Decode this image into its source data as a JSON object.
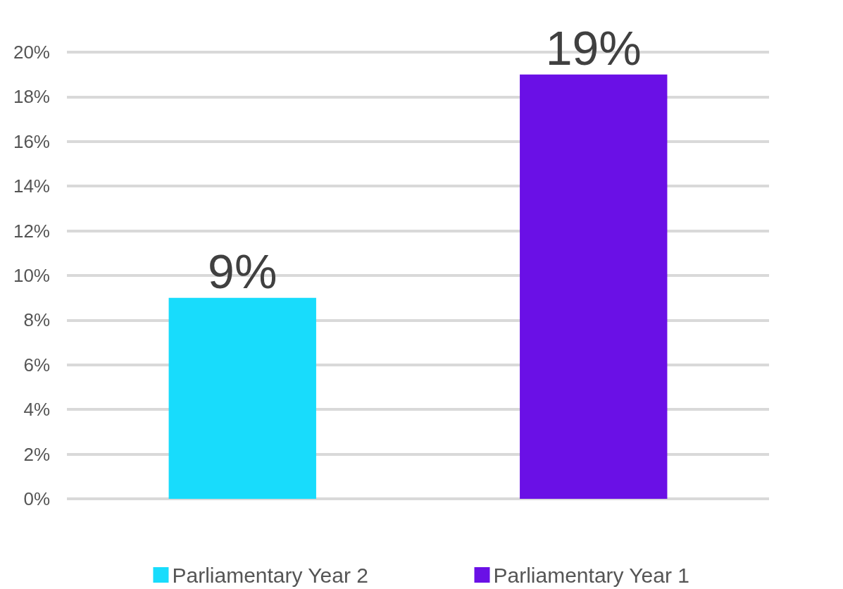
{
  "chart_data": {
    "type": "bar",
    "categories": [
      null,
      null
    ],
    "series": [
      {
        "name": "Parliamentary Year 2",
        "color": "#18dcfc",
        "values": [
          9,
          null
        ],
        "value_labels": [
          "9%",
          null
        ]
      },
      {
        "name": "Parliamentary Year 1",
        "color": "#6a10e6",
        "values": [
          null,
          19
        ],
        "value_labels": [
          null,
          "19%"
        ]
      }
    ],
    "ylim": [
      0,
      20
    ],
    "yticks": [
      {
        "value": 0,
        "label": "0%"
      },
      {
        "value": 2,
        "label": "2%"
      },
      {
        "value": 4,
        "label": "4%"
      },
      {
        "value": 6,
        "label": "6%"
      },
      {
        "value": 8,
        "label": "8%"
      },
      {
        "value": 10,
        "label": "10%"
      },
      {
        "value": 12,
        "label": "12%"
      },
      {
        "value": 14,
        "label": "14%"
      },
      {
        "value": 16,
        "label": "16%"
      },
      {
        "value": 18,
        "label": "18%"
      },
      {
        "value": 20,
        "label": "20%"
      }
    ],
    "grid": "y",
    "legend": "bottom"
  }
}
